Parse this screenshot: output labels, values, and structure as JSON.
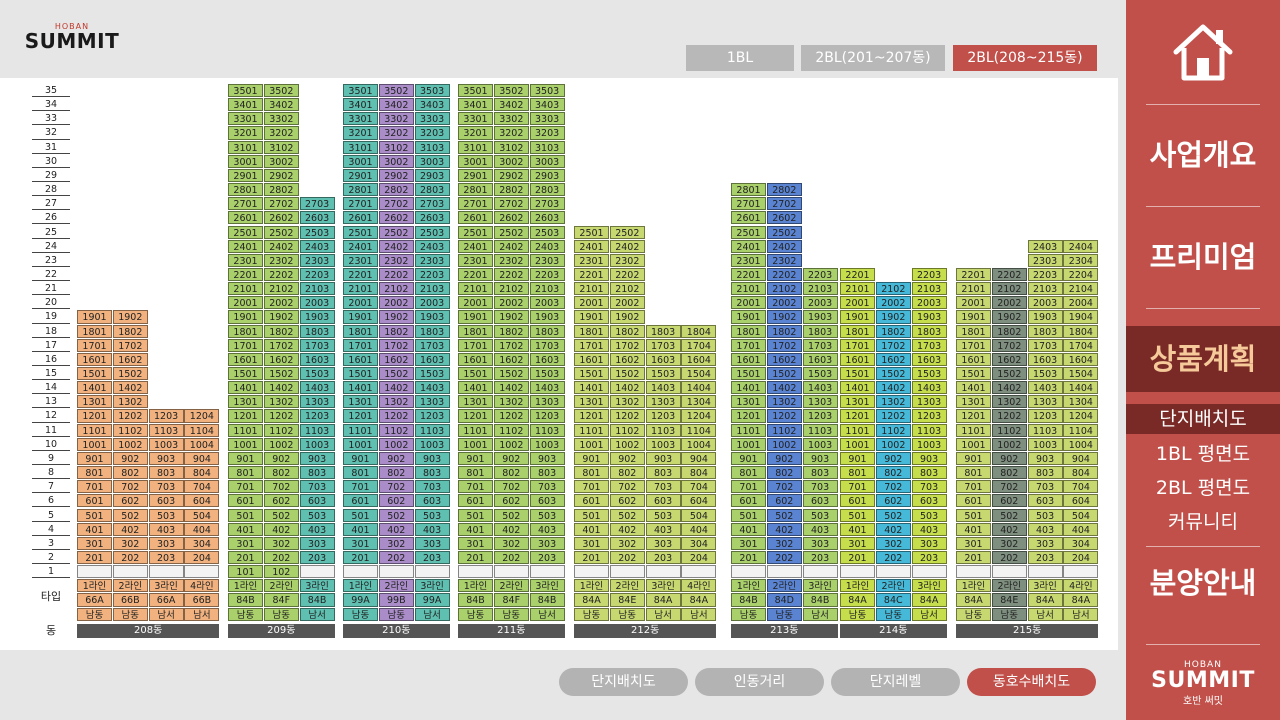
{
  "brand": {
    "small": "HOBAN",
    "name": "SUMMIT",
    "sub": "호반 써밋"
  },
  "top_tabs": [
    {
      "label": "1BL"
    },
    {
      "label": "2BL(201~207동)"
    },
    {
      "label": "2BL(208~215동)"
    }
  ],
  "bottom_buttons": [
    {
      "label": "단지배치도"
    },
    {
      "label": "인동거리"
    },
    {
      "label": "단지레벨"
    },
    {
      "label": "동호수배치도"
    }
  ],
  "sidebar": {
    "menu": [
      {
        "label": "사업개요"
      },
      {
        "label": "프리미엄"
      },
      {
        "label": "상품계획"
      },
      {
        "label": "분양안내"
      }
    ],
    "submenu": [
      {
        "label": "단지배치도"
      },
      {
        "label": "1BL 평면도"
      },
      {
        "label": "2BL 평면도"
      },
      {
        "label": "커뮤니티"
      }
    ]
  },
  "row_labels": {
    "type": "타입",
    "building": "동"
  },
  "colors": {
    "accent": "#c1504a",
    "orange": "#f1b27f",
    "green": "#a9d06a",
    "purple": "#a98cc8",
    "blue": "#46b8d8",
    "navy": "#5a84d2",
    "olive": "#c8d871",
    "gray": "#7f8f7f",
    "teal": "#5fbfb0",
    "pink": "#e49ac8",
    "yellowgreen": "#c6dd4c"
  },
  "buildings": [
    {
      "name": "208동",
      "lines": [
        {
          "line": "1라인",
          "type": "66A",
          "dir": "남동",
          "top": 19,
          "base": 2,
          "color": "orange"
        },
        {
          "line": "2라인",
          "type": "66B",
          "dir": "남동",
          "top": 19,
          "base": 2,
          "color": "orange"
        },
        {
          "line": "3라인",
          "type": "66A",
          "dir": "남서",
          "top": 12,
          "base": 2,
          "color": "orange"
        },
        {
          "line": "4라인",
          "type": "66B",
          "dir": "남서",
          "top": 12,
          "base": 2,
          "color": "orange"
        }
      ]
    },
    {
      "name": "209동",
      "lines": [
        {
          "line": "1라인",
          "type": "84B",
          "dir": "남동",
          "top": 35,
          "base": 1,
          "color": "green"
        },
        {
          "line": "2라인",
          "type": "84F",
          "dir": "남동",
          "top": 35,
          "base": 1,
          "color": "green"
        },
        {
          "line": "3라인",
          "type": "84B",
          "dir": "남서",
          "top": 27,
          "base": 2,
          "color": "teal"
        }
      ]
    },
    {
      "name": "210동",
      "lines": [
        {
          "line": "1라인",
          "type": "99A",
          "dir": "남동",
          "top": 35,
          "base": 2,
          "color": "teal"
        },
        {
          "line": "2라인",
          "type": "99B",
          "dir": "남동",
          "top": 35,
          "base": 2,
          "color": "purple"
        },
        {
          "line": "3라인",
          "type": "99A",
          "dir": "남서",
          "top": 35,
          "base": 2,
          "color": "teal"
        }
      ]
    },
    {
      "name": "211동",
      "lines": [
        {
          "line": "1라인",
          "type": "84B",
          "dir": "남동",
          "top": 35,
          "base": 2,
          "color": "green"
        },
        {
          "line": "2라인",
          "type": "84F",
          "dir": "남동",
          "top": 35,
          "base": 2,
          "color": "green"
        },
        {
          "line": "3라인",
          "type": "84B",
          "dir": "남서",
          "top": 35,
          "base": 2,
          "color": "green"
        }
      ]
    },
    {
      "name": "212동",
      "lines": [
        {
          "line": "1라인",
          "type": "84A",
          "dir": "남동",
          "top": 25,
          "base": 2,
          "color": "olive"
        },
        {
          "line": "2라인",
          "type": "84E",
          "dir": "남동",
          "top": 25,
          "base": 2,
          "color": "olive"
        },
        {
          "line": "3라인",
          "type": "84A",
          "dir": "남서",
          "top": 18,
          "base": 2,
          "color": "olive"
        },
        {
          "line": "4라인",
          "type": "84A",
          "dir": "남서",
          "top": 18,
          "base": 2,
          "color": "olive"
        }
      ]
    },
    {
      "name": "213동",
      "lines": [
        {
          "line": "1라인",
          "type": "84B",
          "dir": "남동",
          "top": 28,
          "base": 2,
          "color": "green"
        },
        {
          "line": "2라인",
          "type": "84D",
          "dir": "남동",
          "top": 28,
          "base": 2,
          "color": "navy"
        },
        {
          "line": "3라인",
          "type": "84B",
          "dir": "남서",
          "top": 22,
          "base": 2,
          "color": "green"
        }
      ]
    },
    {
      "name": "214동",
      "lines": [
        {
          "line": "1라인",
          "type": "84A",
          "dir": "남동",
          "top": 22,
          "base": 2,
          "color": "yellowgreen"
        },
        {
          "line": "2라인",
          "type": "84C",
          "dir": "남동",
          "top": 21,
          "base": 2,
          "color": "blue"
        },
        {
          "line": "3라인",
          "type": "84A",
          "dir": "남서",
          "top": 22,
          "base": 2,
          "color": "yellowgreen"
        }
      ]
    },
    {
      "name": "215동",
      "lines": [
        {
          "line": "1라인",
          "type": "84A",
          "dir": "남동",
          "top": 22,
          "base": 2,
          "color": "olive"
        },
        {
          "line": "2라인",
          "type": "84E",
          "dir": "남동",
          "top": 22,
          "base": 2,
          "color": "gray"
        },
        {
          "line": "3라인",
          "type": "84A",
          "dir": "남서",
          "top": 24,
          "base": 2,
          "color": "olive"
        },
        {
          "line": "4라인",
          "type": "84A",
          "dir": "남서",
          "top": 24,
          "base": 2,
          "color": "olive"
        }
      ]
    }
  ]
}
